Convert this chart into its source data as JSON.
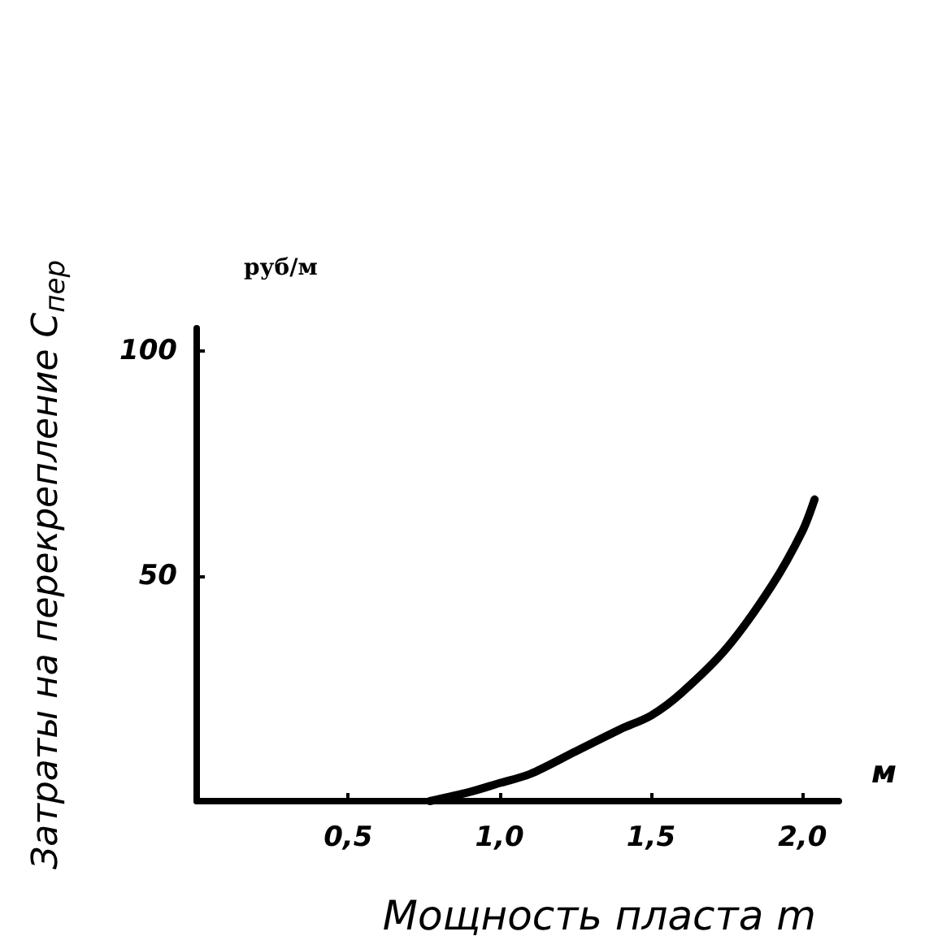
{
  "chart_data": {
    "type": "line",
    "xlabel": "Мощность пласта m",
    "ylabel": "Затраты на перекрепление C$_{пер}$",
    "annotations": [
      "руб/м",
      "м"
    ],
    "x": [
      0.77,
      0.9,
      1.0,
      1.1,
      1.25,
      1.4,
      1.5,
      1.6,
      1.75,
      1.9,
      2.0,
      2.04
    ],
    "series": [
      {
        "color": "#000000",
        "values": [
          0,
          2,
          4,
          6,
          11,
          16,
          19,
          24,
          34,
          48,
          60,
          67
        ]
      }
    ],
    "xlim": [
      0,
      2.12
    ],
    "ylim": [
      0,
      105
    ],
    "xticks": [
      {
        "value": 0,
        "label": null
      },
      {
        "value": 0.5,
        "label": "0,5"
      },
      {
        "value": 1.0,
        "label": "1,0"
      },
      {
        "value": 1.5,
        "label": "1,5"
      },
      {
        "value": 2.0,
        "label": "2,0"
      }
    ],
    "yticks": [
      {
        "value": 0,
        "label": null
      },
      50,
      100
    ],
    "grid": false,
    "marker": "none",
    "line_style": "solid"
  }
}
